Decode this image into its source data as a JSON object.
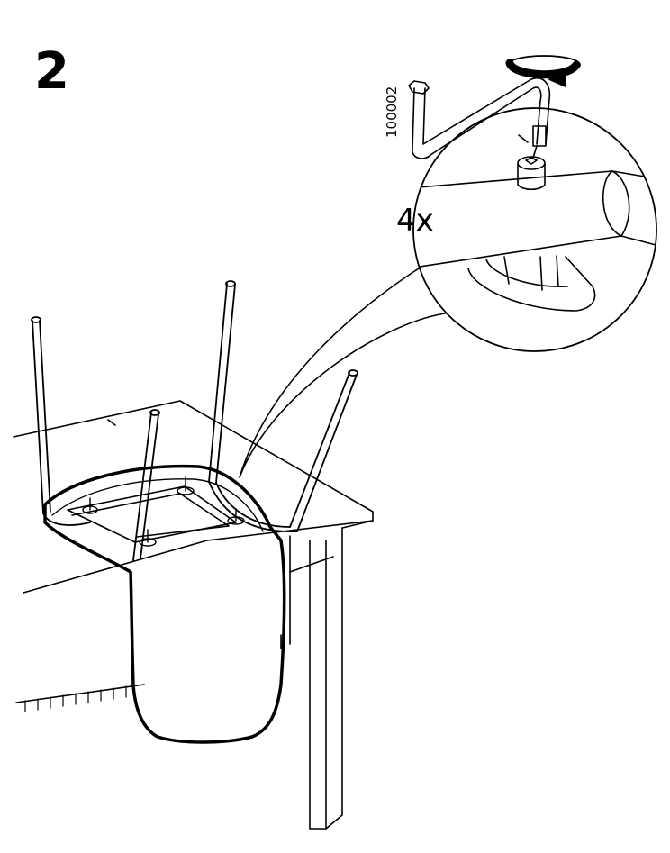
{
  "step": {
    "number": "2"
  },
  "detail": {
    "quantity": "4x"
  },
  "tool": {
    "part_number": "100002",
    "name": "hex-key"
  },
  "colors": {
    "line": "#000000",
    "background": "#ffffff"
  }
}
